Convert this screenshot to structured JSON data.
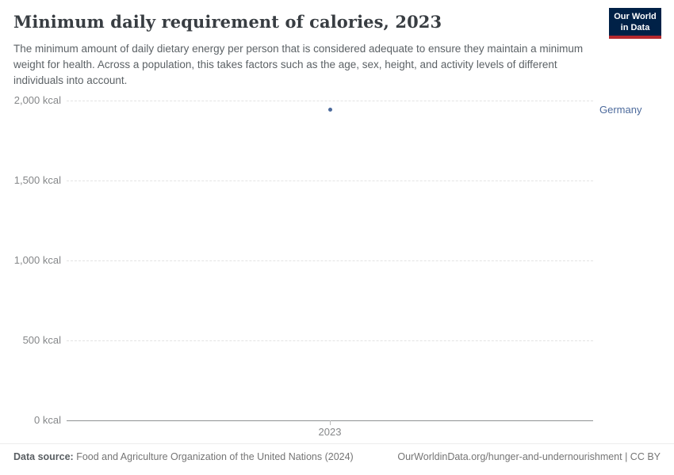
{
  "header": {
    "title": "Minimum daily requirement of calories, 2023",
    "subtitle": "The minimum amount of daily dietary energy per person that is considered adequate to ensure they maintain a minimum weight for health. Across a population, this takes factors such as the age, sex, height, and activity levels of different individuals into account.",
    "logo": {
      "line1": "Our World",
      "line2": "in Data"
    }
  },
  "chart": {
    "y_ticks": [
      {
        "label": "2,000 kcal",
        "value": 2000
      },
      {
        "label": "1,500 kcal",
        "value": 1500
      },
      {
        "label": "1,000 kcal",
        "value": 1000
      },
      {
        "label": "500 kcal",
        "value": 500
      },
      {
        "label": "0 kcal",
        "value": 0
      }
    ],
    "x_tick": "2023",
    "entity_label": "Germany"
  },
  "chart_data": {
    "type": "scatter",
    "title": "Minimum daily requirement of calories, 2023",
    "x": [
      2023
    ],
    "series": [
      {
        "name": "Germany",
        "values": [
          1941
        ],
        "color": "#4C6A9C"
      }
    ],
    "xlabel": "",
    "ylabel": "kcal",
    "ylim": [
      0,
      2000
    ],
    "grid": "horizontal-dashed",
    "legend_position": "entity-label-right"
  },
  "footer": {
    "data_source_label": "Data source:",
    "data_source_value": " Food and Agriculture Organization of the United Nations (2024)",
    "link": "OurWorldinData.org/hunger-and-undernourishment | CC BY"
  },
  "colors": {
    "accent_blue": "#4C6A9C",
    "logo_navy": "#002147",
    "logo_red": "#B5292E",
    "gridline": "#e3e3e3",
    "axis": "#8f9193",
    "text_gray": "#757575"
  }
}
